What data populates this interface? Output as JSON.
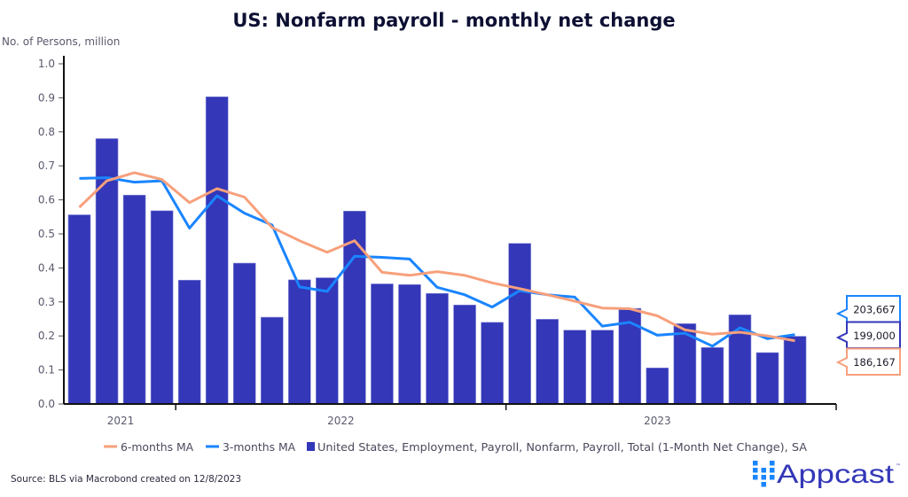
{
  "chart_data": {
    "type": "bar",
    "title": "US: Nonfarm payroll - monthly net change",
    "ylabel": "No. of Persons, million",
    "xlabel": "",
    "ylim": [
      0.0,
      1.0
    ],
    "yticks": [
      "0.0",
      "0.1",
      "0.2",
      "0.3",
      "0.4",
      "0.5",
      "0.6",
      "0.7",
      "0.8",
      "0.9",
      "1.0"
    ],
    "x_year_labels": [
      {
        "label": "2021",
        "bars_in_year": 4
      },
      {
        "label": "2022",
        "bars_in_year": 12
      },
      {
        "label": "2023",
        "bars_in_year": 11
      }
    ],
    "grid": false,
    "legend_position": "bottom",
    "series": [
      {
        "name": "6-months MA",
        "type": "line",
        "color": "#f7a07c",
        "values": [
          0.578,
          0.656,
          0.68,
          0.66,
          0.592,
          0.633,
          0.608,
          0.519,
          0.48,
          0.446,
          0.48,
          0.387,
          0.378,
          0.389,
          0.378,
          0.356,
          0.339,
          0.321,
          0.302,
          0.282,
          0.28,
          0.259,
          0.218,
          0.205,
          0.211,
          0.2,
          0.186
        ]
      },
      {
        "name": "3-months MA",
        "type": "line",
        "color": "#1a85ff",
        "values": [
          0.663,
          0.665,
          0.652,
          0.656,
          0.517,
          0.612,
          0.561,
          0.526,
          0.344,
          0.331,
          0.434,
          0.431,
          0.426,
          0.343,
          0.321,
          0.285,
          0.333,
          0.321,
          0.314,
          0.229,
          0.24,
          0.202,
          0.208,
          0.17,
          0.224,
          0.192,
          0.204
        ]
      },
      {
        "name": "United States, Employment, Payroll, Nonfarm, Payroll, Total (1-Month Net Change), SA",
        "type": "bar",
        "color": "#3337b8",
        "values": [
          0.556,
          0.78,
          0.614,
          0.568,
          0.364,
          0.903,
          0.414,
          0.255,
          0.365,
          0.371,
          0.567,
          0.353,
          0.351,
          0.325,
          0.291,
          0.24,
          0.472,
          0.249,
          0.217,
          0.217,
          0.281,
          0.106,
          0.236,
          0.166,
          0.262,
          0.151,
          0.199
        ]
      }
    ],
    "callouts": [
      {
        "label": "203,667",
        "series": "3-months MA",
        "color": "#1a85ff"
      },
      {
        "label": "199,000",
        "series": "bar",
        "color": "#3337b8"
      },
      {
        "label": "186,167",
        "series": "6-months MA",
        "color": "#f7a07c"
      }
    ],
    "source": "Source: BLS via Macrobond created on 12/8/2023"
  },
  "branding": {
    "logo_text": "Appcast",
    "logo_trademark": "™",
    "logo_color": "#1a85ff",
    "text_color": "#3337b8"
  },
  "colors": {
    "title": "#0d1033",
    "axis": "#111111",
    "text": "#5a5a6e"
  }
}
